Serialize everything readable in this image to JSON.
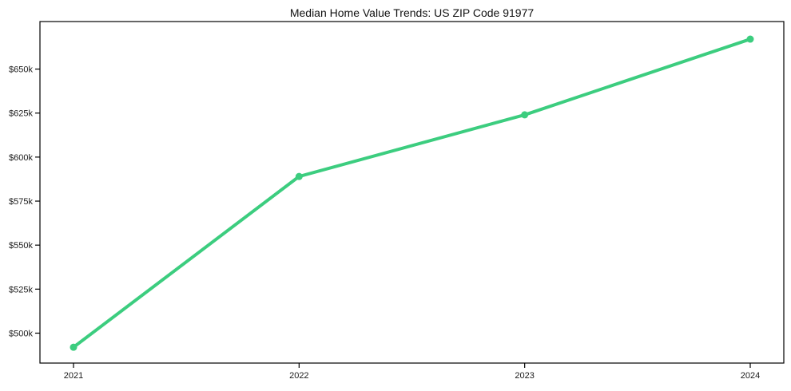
{
  "chart_data": {
    "type": "line",
    "title": "Median Home Value Trends: US ZIP Code 91977",
    "xlabel": "",
    "ylabel": "",
    "categories": [
      "2021",
      "2022",
      "2023",
      "2024"
    ],
    "series": [
      {
        "name": "Median Home Value",
        "values": [
          492000,
          589000,
          624000,
          667000
        ]
      }
    ],
    "ylim": [
      483000,
      677000
    ],
    "yticks": [
      {
        "value": 500000,
        "label": "$500k"
      },
      {
        "value": 525000,
        "label": "$525k"
      },
      {
        "value": 550000,
        "label": "$550k"
      },
      {
        "value": 575000,
        "label": "$575k"
      },
      {
        "value": 600000,
        "label": "$600k"
      },
      {
        "value": 625000,
        "label": "$625k"
      },
      {
        "value": 650000,
        "label": "$650k"
      }
    ],
    "grid": false,
    "legend_position": "none",
    "marker": "circle"
  },
  "colors": {
    "line": "#3ccd7f",
    "marker": "#3ccd7f",
    "spine": "#000000",
    "tick_text": "#1a1a1a",
    "title_text": "#111111",
    "background": "#ffffff"
  }
}
